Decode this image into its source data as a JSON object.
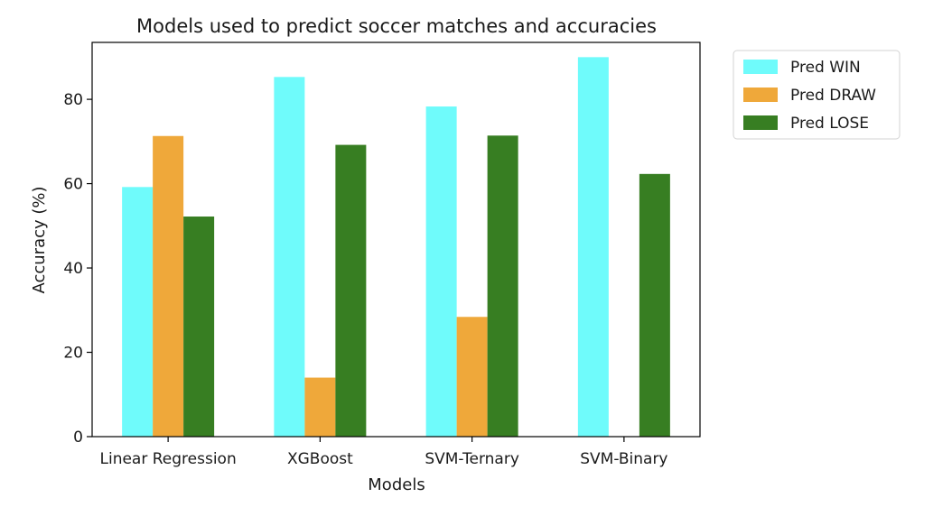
{
  "chart_data": {
    "type": "bar",
    "title": "Models used to predict soccer matches and accuracies",
    "xlabel": "Models",
    "ylabel": "Accuracy (%)",
    "categories": [
      "Linear Regression",
      "XGBoost",
      "SVM-Ternary",
      "SVM-Binary"
    ],
    "series": [
      {
        "name": "Pred WIN",
        "color": "#6ffbfb",
        "values": [
          59.2,
          85.3,
          78.3,
          90.0
        ]
      },
      {
        "name": "Pred DRAW",
        "color": "#efa83a",
        "values": [
          71.3,
          14.0,
          28.4,
          0
        ]
      },
      {
        "name": "Pred LOSE",
        "color": "#377e22",
        "values": [
          52.2,
          69.2,
          71.4,
          62.3
        ]
      }
    ],
    "ylim": [
      0,
      93.5
    ],
    "yticks": [
      "0",
      "20",
      "40",
      "60",
      "80"
    ],
    "grid": false,
    "legend": "outside upper right"
  }
}
